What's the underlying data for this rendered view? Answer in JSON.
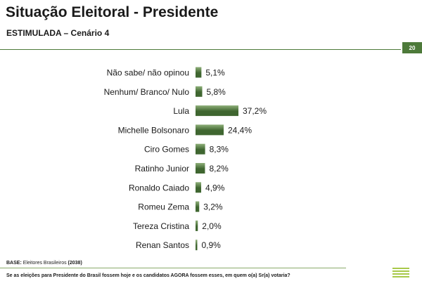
{
  "header": {
    "title": "Situação Eleitoral - Presidente",
    "subtitle": "ESTIMULADA – Cenário 4",
    "page_number": "20"
  },
  "footer": {
    "base_label": "BASE:",
    "base_text": "Eleitores Brasileiros",
    "base_count": "(2038)",
    "question": "Se as eleições para Presidente do Brasil fossem hoje e os candidatos AGORA fossem esses, em quem o(a) Sr(a) votaria?"
  },
  "colors": {
    "bar_dark": "#3f6630",
    "bar_light": "#8fb07a",
    "accent": "#4d7a3a"
  },
  "chart_data": {
    "type": "bar",
    "orientation": "horizontal",
    "categories": [
      "Não sabe/ não opinou",
      "Nenhum/ Branco/ Nulo",
      "Lula",
      "Michelle Bolsonaro",
      "Ciro Gomes",
      "Ratinho Junior",
      "Ronaldo Caiado",
      "Romeu Zema",
      "Tereza Cristina",
      "Renan Santos"
    ],
    "values": [
      5.1,
      5.8,
      37.2,
      24.4,
      8.3,
      8.2,
      4.9,
      3.2,
      2.0,
      0.9
    ],
    "value_labels": [
      "5,1%",
      "5,8%",
      "37,2%",
      "24,4%",
      "8,3%",
      "8,2%",
      "4,9%",
      "3,2%",
      "2,0%",
      "0,9%"
    ],
    "xlim": [
      0,
      37.2
    ],
    "grid": false,
    "legend": "none"
  }
}
